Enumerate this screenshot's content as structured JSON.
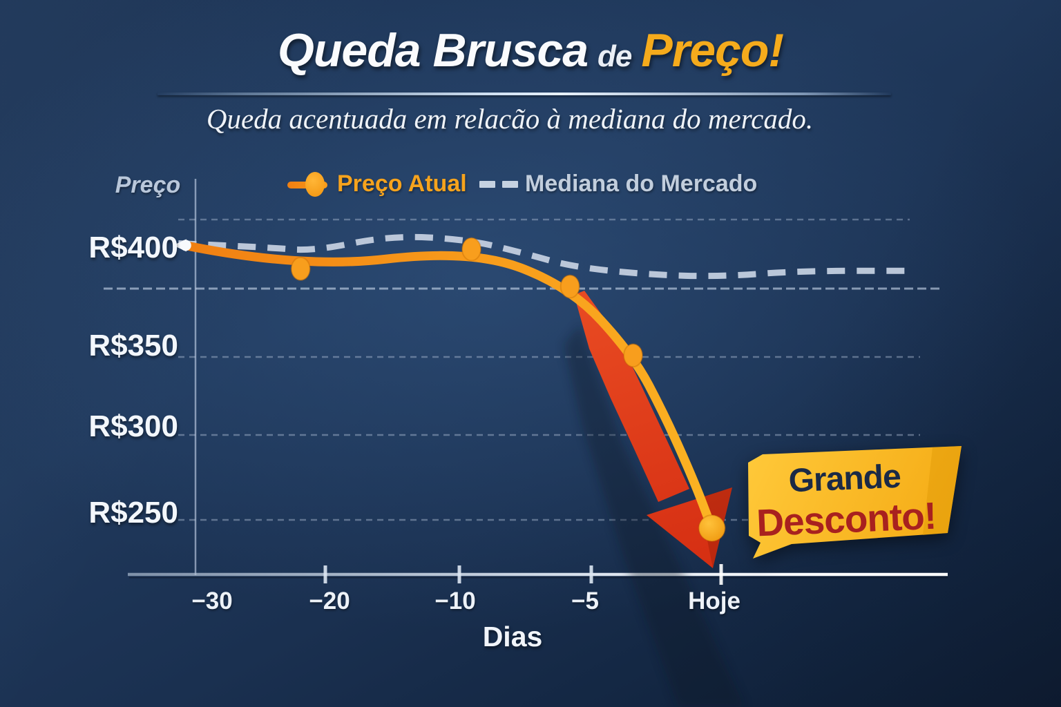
{
  "title": {
    "part1": "Queda Brusca",
    "part2": "de",
    "part3": "Preço!"
  },
  "subtitle": "Queda acentuada em relacão à mediana do mercado.",
  "legend": [
    {
      "label": "Preço Atual",
      "color": "#f6a31d",
      "marker": "line-with-dot"
    },
    {
      "label": "Mediana do Mercado",
      "color": "#c2cedd",
      "marker": "dashes"
    }
  ],
  "y_axis": {
    "title": "Preço",
    "labels": [
      "R$400",
      "R$350",
      "R$300",
      "R$250"
    ]
  },
  "x_axis": {
    "title": "Dias",
    "labels": [
      "−30",
      "−20",
      "−10",
      "−5",
      "Hoje"
    ]
  },
  "badge": {
    "line1": "Grande",
    "line2": "Desconto!"
  },
  "colors": {
    "background_navy": "#1d3557",
    "title_gold": "#f5ab1c",
    "price_line_orange": "#f89c1b",
    "median_gray": "#c3cfdf",
    "arrow_red": "#e0361b",
    "badge_yellow": "#f9b91f",
    "badge_text_navy": "#1b2a46",
    "badge_text_red": "#a8211f"
  },
  "chart_data": {
    "type": "line",
    "title": "Queda Brusca de Preço!",
    "subtitle": "Queda acentuada em relacão à mediana do mercado.",
    "xlabel": "Dias",
    "ylabel": "Preço",
    "x_scale": "category index: 0=−30, 1=−20, 2=−10, 3=−5, 4=Hoje (points may sit between ticks)",
    "categories": [
      "−30",
      "−20",
      "−10",
      "−5",
      "Hoje"
    ],
    "y_gridline_prices": [
      400,
      350,
      300,
      250
    ],
    "legend_position": "top",
    "grid": true,
    "series": [
      {
        "name": "Preço Atual",
        "color": "#f89c1b",
        "style": "solid",
        "points": [
          {
            "x": -0.08,
            "y": 402,
            "marker": "start"
          },
          {
            "x": 0.8,
            "y": 390,
            "marker": "dot"
          },
          {
            "x": 2.1,
            "y": 400,
            "marker": "dot"
          },
          {
            "x": 2.85,
            "y": 381,
            "marker": "dot"
          },
          {
            "x": 3.33,
            "y": 345,
            "marker": "dot"
          },
          {
            "x": 3.57,
            "y": 308
          },
          {
            "x": 3.79,
            "y": 270
          },
          {
            "x": 3.93,
            "y": 242,
            "marker": "ball"
          }
        ]
      },
      {
        "name": "Mediana do Mercado",
        "color": "#c3cfdf",
        "style": "dashed",
        "points": [
          {
            "x": -0.13,
            "y": 403
          },
          {
            "x": 0.55,
            "y": 401
          },
          {
            "x": 0.9,
            "y": 399
          },
          {
            "x": 1.48,
            "y": 407
          },
          {
            "x": 2.07,
            "y": 405
          },
          {
            "x": 2.5,
            "y": 398
          },
          {
            "x": 2.87,
            "y": 391
          },
          {
            "x": 3.45,
            "y": 387
          },
          {
            "x": 4.0,
            "y": 386
          },
          {
            "x": 4.6,
            "y": 389
          },
          {
            "x": 5.48,
            "y": 389
          }
        ]
      }
    ],
    "annotation": {
      "text": "Grande Desconto!",
      "position": "near final point"
    }
  }
}
